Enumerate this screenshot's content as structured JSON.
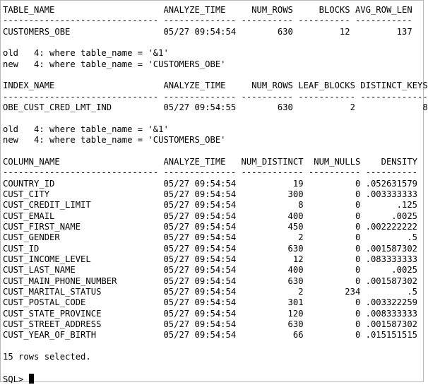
{
  "terminal": {
    "lines": [
      "TABLE_NAME                     ANALYZE_TIME     NUM_ROWS     BLOCKS AVG_ROW_LEN",
      "------------------------------ -------------- ---------- ---------- -----------",
      "CUSTOMERS_OBE                  05/27 09:54:54        630         12         137",
      "",
      "old   4: where table_name = '&1'",
      "new   4: where table_name = 'CUSTOMERS_OBE'",
      "",
      "INDEX_NAME                     ANALYZE_TIME     NUM_ROWS LEAF_BLOCKS DISTINCT_KEYS",
      "------------------------------ -------------- ---------- ----------- -------------",
      "OBE_CUST_CRED_LMT_IND          05/27 09:54:55        630           2             8",
      "",
      "old   4: where table_name = '&1'",
      "new   4: where table_name = 'CUSTOMERS_OBE'",
      "",
      "COLUMN_NAME                    ANALYZE_TIME   NUM_DISTINCT  NUM_NULLS    DENSITY",
      "------------------------------ -------------- ------------ ---------- ----------",
      "COUNTRY_ID                     05/27 09:54:54           19          0 .052631579",
      "CUST_CITY                      05/27 09:54:54          300          0 .003333333",
      "CUST_CREDIT_LIMIT              05/27 09:54:54            8          0       .125",
      "CUST_EMAIL                     05/27 09:54:54          400          0      .0025",
      "CUST_FIRST_NAME                05/27 09:54:54          450          0 .002222222",
      "CUST_GENDER                    05/27 09:54:54            2          0         .5",
      "CUST_ID                        05/27 09:54:54          630          0 .001587302",
      "CUST_INCOME_LEVEL              05/27 09:54:54           12          0 .083333333",
      "CUST_LAST_NAME                 05/27 09:54:54          400          0      .0025",
      "CUST_MAIN_PHONE_NUMBER         05/27 09:54:54          630          0 .001587302",
      "CUST_MARITAL_STATUS            05/27 09:54:54            2        234         .5",
      "CUST_POSTAL_CODE               05/27 09:54:54          301          0 .003322259",
      "CUST_STATE_PROVINCE            05/27 09:54:54          120          0 .008333333",
      "CUST_STREET_ADDRESS            05/27 09:54:54          630          0 .001587302",
      "CUST_YEAR_OF_BIRTH             05/27 09:54:54           66          0 .015151515",
      "",
      "15 rows selected.",
      ""
    ],
    "prompt": "SQL> "
  }
}
